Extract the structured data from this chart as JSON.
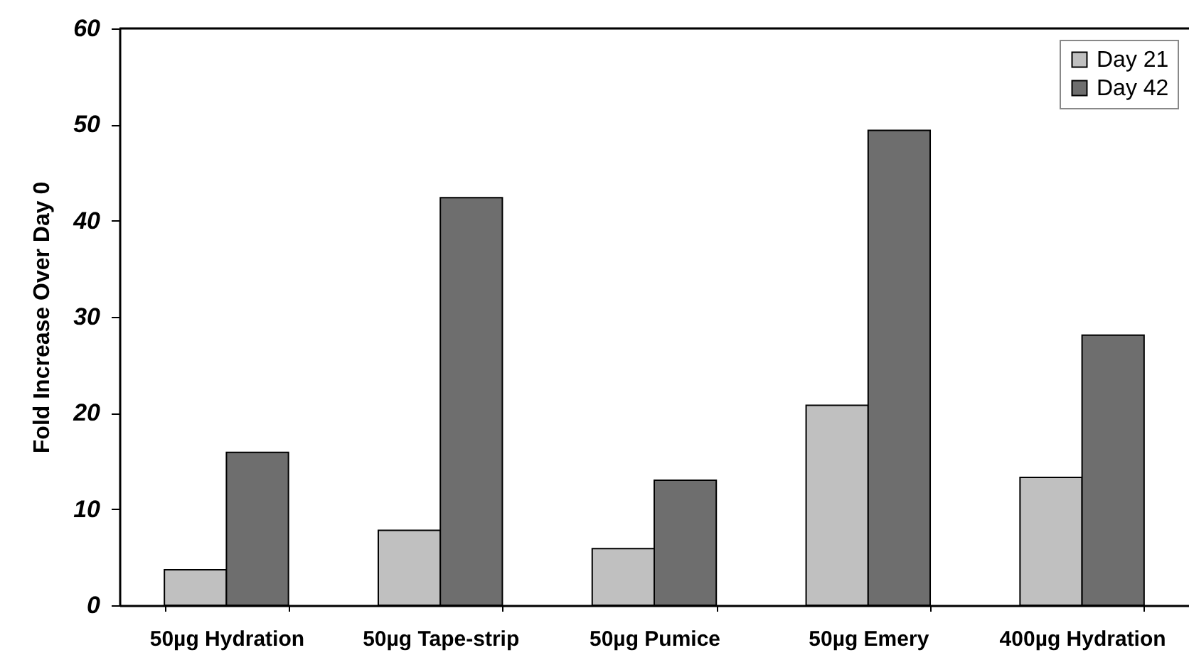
{
  "chart_data": {
    "type": "bar",
    "ylabel": "Fold Increase Over Day 0",
    "categories": [
      "50µg Hydration",
      "50µg Tape-strip",
      "50µg Pumice",
      "50µg Emery",
      "400µg Hydration"
    ],
    "series": [
      {
        "name": "Day 21",
        "color": "#c0c0c0",
        "values": [
          3.7,
          7.8,
          5.9,
          20.8,
          13.3
        ]
      },
      {
        "name": "Day 42",
        "color": "#6e6e6e",
        "values": [
          15.9,
          42.4,
          13.0,
          49.4,
          28.1
        ]
      }
    ],
    "ylim": [
      0,
      60
    ],
    "yticks": [
      0,
      10,
      20,
      30,
      40,
      50,
      60
    ],
    "legend": "top right"
  }
}
